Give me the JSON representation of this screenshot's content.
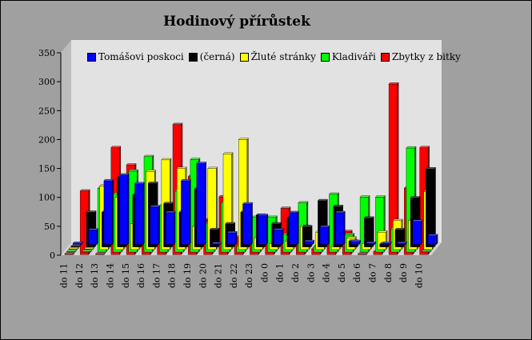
{
  "chart_data": {
    "type": "bar",
    "title": "Hodinový přírůstek",
    "ylim": [
      0,
      350
    ],
    "yticks": [
      0,
      50,
      100,
      150,
      200,
      250,
      300,
      350
    ],
    "categories": [
      "do 11",
      "do 12",
      "do 13",
      "do 14",
      "do 15",
      "do 16",
      "do 17",
      "do 18",
      "do 19",
      "do 20",
      "do 21",
      "do 22",
      "do 23",
      "do 0",
      "do 1",
      "do 2",
      "do 3",
      "do 4",
      "do 5",
      "do 6",
      "do 7",
      "do 8",
      "do 9",
      "do 10"
    ],
    "series": [
      {
        "name": "Tomášovi poskoci",
        "color": "#0000ff",
        "values": [
          2,
          25,
          110,
          120,
          105,
          65,
          55,
          110,
          140,
          1,
          20,
          70,
          50,
          25,
          55,
          5,
          30,
          55,
          5,
          2,
          2,
          2,
          40,
          15
        ]
      },
      {
        "name": "(černá)",
        "color": "#000000",
        "values": [
          0,
          60,
          60,
          120,
          90,
          110,
          75,
          60,
          100,
          30,
          40,
          60,
          55,
          40,
          50,
          35,
          80,
          70,
          10,
          50,
          5,
          30,
          85,
          135
        ]
      },
      {
        "name": "Žluté stránky",
        "color": "#ffff00",
        "values": [
          0,
          0,
          110,
          90,
          45,
          135,
          155,
          140,
          40,
          140,
          165,
          190,
          20,
          10,
          15,
          40,
          30,
          5,
          20,
          10,
          30,
          50,
          50,
          100
        ]
      },
      {
        "name": "Kladiváři",
        "color": "#00ff00",
        "values": [
          0,
          0,
          110,
          100,
          140,
          165,
          80,
          105,
          160,
          50,
          85,
          10,
          60,
          60,
          30,
          85,
          10,
          100,
          30,
          95,
          95,
          40,
          180,
          0
        ]
      },
      {
        "name": "Zbytky z bitky",
        "color": "#ff0000",
        "values": [
          0,
          110,
          0,
          185,
          155,
          110,
          45,
          225,
          135,
          60,
          100,
          30,
          40,
          60,
          80,
          25,
          10,
          45,
          40,
          0,
          5,
          295,
          115,
          185
        ]
      }
    ]
  }
}
